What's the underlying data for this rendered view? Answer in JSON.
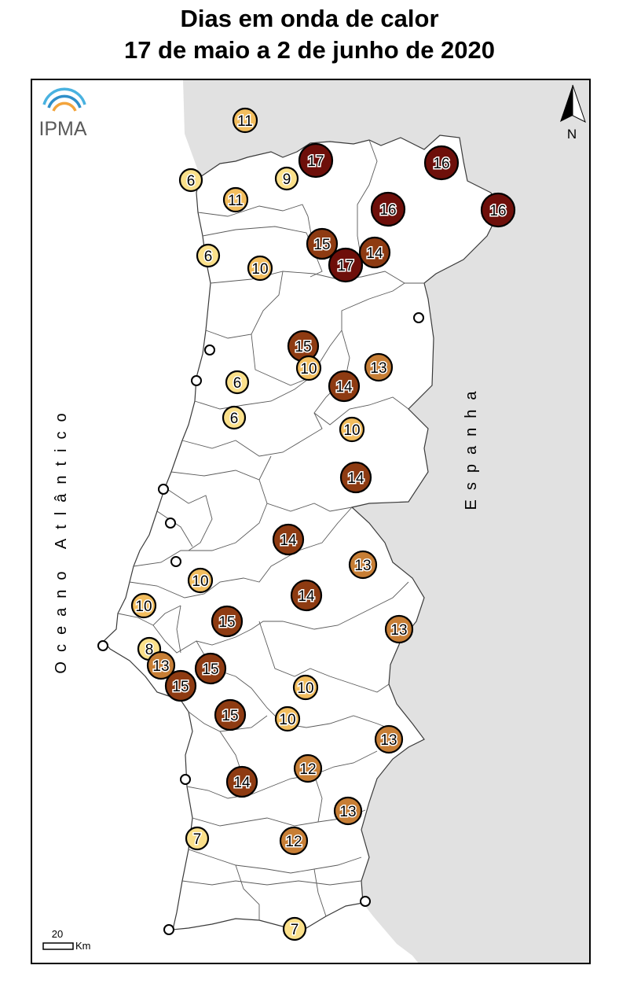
{
  "title_line1": "Dias em onda de calor",
  "title_line2": "17 de maio a 2 de junho de 2020",
  "logo_text": "IPMA",
  "north_label": "N",
  "ocean_label": "Oceano Atlântico",
  "spain_label": "Espanha",
  "scale": {
    "value": "20",
    "unit": "Km"
  },
  "colors": {
    "spain": "#e1e1e1",
    "land": "#ffffff",
    "class_6_9": "#fbe08a",
    "class_10_11": "#f2bd5e",
    "class_12_13": "#c77e35",
    "class_14_15": "#8e3b12",
    "class_16_17": "#6e0f0a"
  },
  "stations": [
    {
      "label": "11",
      "days": 11
    },
    {
      "label": "17",
      "days": 17
    },
    {
      "label": "16",
      "days": 16
    },
    {
      "label": "6",
      "days": 6
    },
    {
      "label": "9",
      "days": 9
    },
    {
      "label": "11",
      "days": 11
    },
    {
      "label": "16",
      "days": 16
    },
    {
      "label": "16",
      "days": 16
    },
    {
      "label": "15",
      "days": 15
    },
    {
      "label": "14",
      "days": 14
    },
    {
      "label": "6",
      "days": 6
    },
    {
      "label": "17",
      "days": 17
    },
    {
      "label": "10",
      "days": 10
    },
    {
      "label": "",
      "days": 0
    },
    {
      "label": "15",
      "days": 15
    },
    {
      "label": "",
      "days": 0
    },
    {
      "label": "10",
      "days": 10
    },
    {
      "label": "13",
      "days": 13
    },
    {
      "label": "",
      "days": 0
    },
    {
      "label": "6",
      "days": 6
    },
    {
      "label": "14",
      "days": 14
    },
    {
      "label": "6",
      "days": 6
    },
    {
      "label": "10",
      "days": 10
    },
    {
      "label": "14",
      "days": 14
    },
    {
      "label": "",
      "days": 0
    },
    {
      "label": "",
      "days": 0
    },
    {
      "label": "14",
      "days": 14
    },
    {
      "label": "",
      "days": 0
    },
    {
      "label": "13",
      "days": 13
    },
    {
      "label": "10",
      "days": 10
    },
    {
      "label": "14",
      "days": 14
    },
    {
      "label": "10",
      "days": 10
    },
    {
      "label": "15",
      "days": 15
    },
    {
      "label": "13",
      "days": 13
    },
    {
      "label": "",
      "days": 0
    },
    {
      "label": "8",
      "days": 8
    },
    {
      "label": "13",
      "days": 13
    },
    {
      "label": "15",
      "days": 15
    },
    {
      "label": "15",
      "days": 15
    },
    {
      "label": "10",
      "days": 10
    },
    {
      "label": "15",
      "days": 15
    },
    {
      "label": "10",
      "days": 10
    },
    {
      "label": "13",
      "days": 13
    },
    {
      "label": "",
      "days": 0
    },
    {
      "label": "14",
      "days": 14
    },
    {
      "label": "12",
      "days": 12
    },
    {
      "label": "13",
      "days": 13
    },
    {
      "label": "7",
      "days": 7
    },
    {
      "label": "12",
      "days": 12
    },
    {
      "label": "",
      "days": 0
    },
    {
      "label": "",
      "days": 0
    },
    {
      "label": "7",
      "days": 7
    }
  ]
}
